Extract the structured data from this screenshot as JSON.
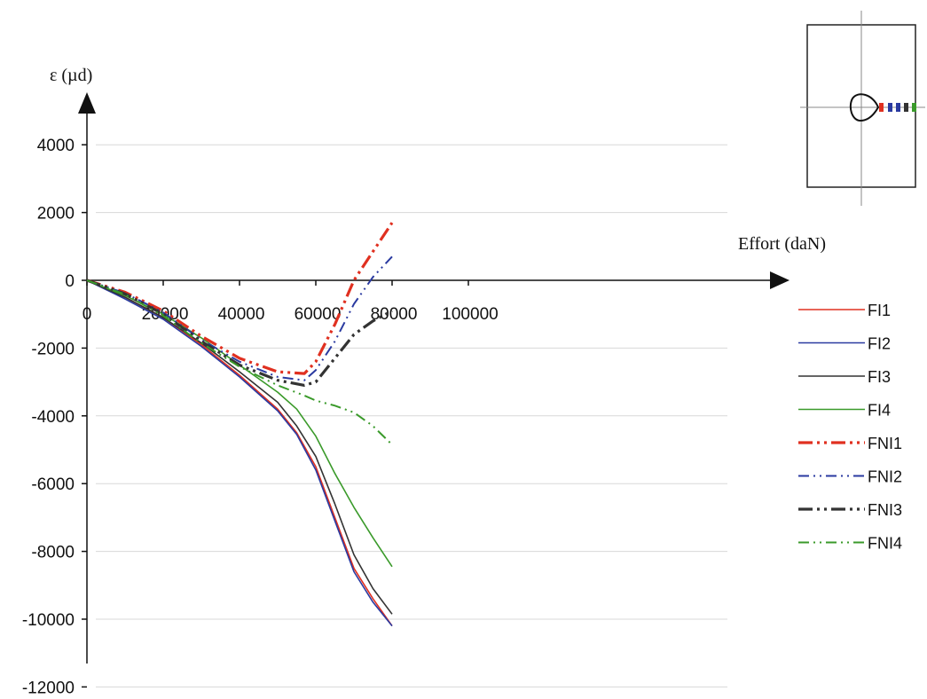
{
  "chart_data": {
    "type": "line",
    "xlabel": "Effort (daN)",
    "ylabel": "ε (µd)",
    "xlim": [
      0,
      110000
    ],
    "ylim": [
      -12000,
      5000
    ],
    "x_ticks": [
      0,
      20000,
      40000,
      60000,
      80000,
      100000
    ],
    "x_tick_labels": [
      "0",
      "20000",
      "40000",
      "60000",
      "80000",
      "100000"
    ],
    "y_ticks": [
      4000,
      2000,
      0,
      -2000,
      -4000,
      -6000,
      -8000,
      -10000,
      -12000
    ],
    "y_tick_labels": [
      "4000",
      "2000",
      "0",
      "-2000",
      "-4000",
      "-6000",
      "-8000",
      "-10000",
      "-12000"
    ],
    "grid": true,
    "legend_position": "right",
    "series": [
      {
        "name": "FI1",
        "color": "#e03020",
        "dash": "solid",
        "points": [
          [
            0,
            0
          ],
          [
            10000,
            -500
          ],
          [
            20000,
            -1100
          ],
          [
            30000,
            -1900
          ],
          [
            40000,
            -2800
          ],
          [
            50000,
            -3800
          ],
          [
            55000,
            -4500
          ],
          [
            60000,
            -5500
          ],
          [
            65000,
            -7000
          ],
          [
            70000,
            -8500
          ],
          [
            75000,
            -9400
          ],
          [
            80000,
            -10200
          ]
        ]
      },
      {
        "name": "FI2",
        "color": "#2a3aa0",
        "dash": "solid",
        "points": [
          [
            0,
            0
          ],
          [
            10000,
            -550
          ],
          [
            20000,
            -1150
          ],
          [
            30000,
            -1950
          ],
          [
            40000,
            -2850
          ],
          [
            50000,
            -3850
          ],
          [
            55000,
            -4550
          ],
          [
            60000,
            -5600
          ],
          [
            65000,
            -7100
          ],
          [
            70000,
            -8600
          ],
          [
            75000,
            -9500
          ],
          [
            80000,
            -10200
          ]
        ]
      },
      {
        "name": "FI3",
        "color": "#333333",
        "dash": "solid",
        "points": [
          [
            0,
            0
          ],
          [
            10000,
            -500
          ],
          [
            20000,
            -1100
          ],
          [
            30000,
            -1850
          ],
          [
            40000,
            -2700
          ],
          [
            50000,
            -3600
          ],
          [
            55000,
            -4300
          ],
          [
            60000,
            -5200
          ],
          [
            65000,
            -6600
          ],
          [
            70000,
            -8100
          ],
          [
            75000,
            -9100
          ],
          [
            80000,
            -9850
          ]
        ]
      },
      {
        "name": "FI4",
        "color": "#3a9a2a",
        "dash": "solid",
        "points": [
          [
            0,
            0
          ],
          [
            10000,
            -450
          ],
          [
            20000,
            -1000
          ],
          [
            30000,
            -1700
          ],
          [
            40000,
            -2500
          ],
          [
            50000,
            -3300
          ],
          [
            55000,
            -3800
          ],
          [
            60000,
            -4600
          ],
          [
            65000,
            -5700
          ],
          [
            70000,
            -6700
          ],
          [
            75000,
            -7600
          ],
          [
            80000,
            -8450
          ]
        ]
      },
      {
        "name": "FNI1",
        "color": "#e03020",
        "dash": "heavy-dash-dot-dot",
        "points": [
          [
            0,
            0
          ],
          [
            10000,
            -350
          ],
          [
            20000,
            -900
          ],
          [
            30000,
            -1650
          ],
          [
            40000,
            -2300
          ],
          [
            50000,
            -2700
          ],
          [
            57000,
            -2750
          ],
          [
            60000,
            -2400
          ],
          [
            65000,
            -1300
          ],
          [
            70000,
            0
          ],
          [
            75000,
            850
          ],
          [
            80000,
            1700
          ]
        ]
      },
      {
        "name": "FNI2",
        "color": "#2a3aa0",
        "dash": "light-dash-dot-dot",
        "points": [
          [
            0,
            0
          ],
          [
            10000,
            -380
          ],
          [
            20000,
            -950
          ],
          [
            30000,
            -1750
          ],
          [
            40000,
            -2400
          ],
          [
            50000,
            -2850
          ],
          [
            57000,
            -2950
          ],
          [
            60000,
            -2650
          ],
          [
            65000,
            -1800
          ],
          [
            70000,
            -700
          ],
          [
            75000,
            100
          ],
          [
            80000,
            700
          ]
        ]
      },
      {
        "name": "FNI3",
        "color": "#333333",
        "dash": "heavy-dash-dot-dot",
        "points": [
          [
            0,
            0
          ],
          [
            10000,
            -400
          ],
          [
            20000,
            -1000
          ],
          [
            30000,
            -1800
          ],
          [
            40000,
            -2500
          ],
          [
            50000,
            -2950
          ],
          [
            57000,
            -3100
          ],
          [
            60000,
            -3000
          ],
          [
            65000,
            -2300
          ],
          [
            70000,
            -1600
          ],
          [
            75000,
            -1200
          ],
          [
            80000,
            -900
          ]
        ]
      },
      {
        "name": "FNI4",
        "color": "#3a9a2a",
        "dash": "light-dash-dot-dot",
        "points": [
          [
            0,
            0
          ],
          [
            10000,
            -420
          ],
          [
            20000,
            -1050
          ],
          [
            30000,
            -1850
          ],
          [
            40000,
            -2550
          ],
          [
            50000,
            -3100
          ],
          [
            57000,
            -3400
          ],
          [
            60000,
            -3550
          ],
          [
            65000,
            -3700
          ],
          [
            70000,
            -3900
          ],
          [
            75000,
            -4300
          ],
          [
            80000,
            -4850
          ]
        ]
      }
    ]
  }
}
